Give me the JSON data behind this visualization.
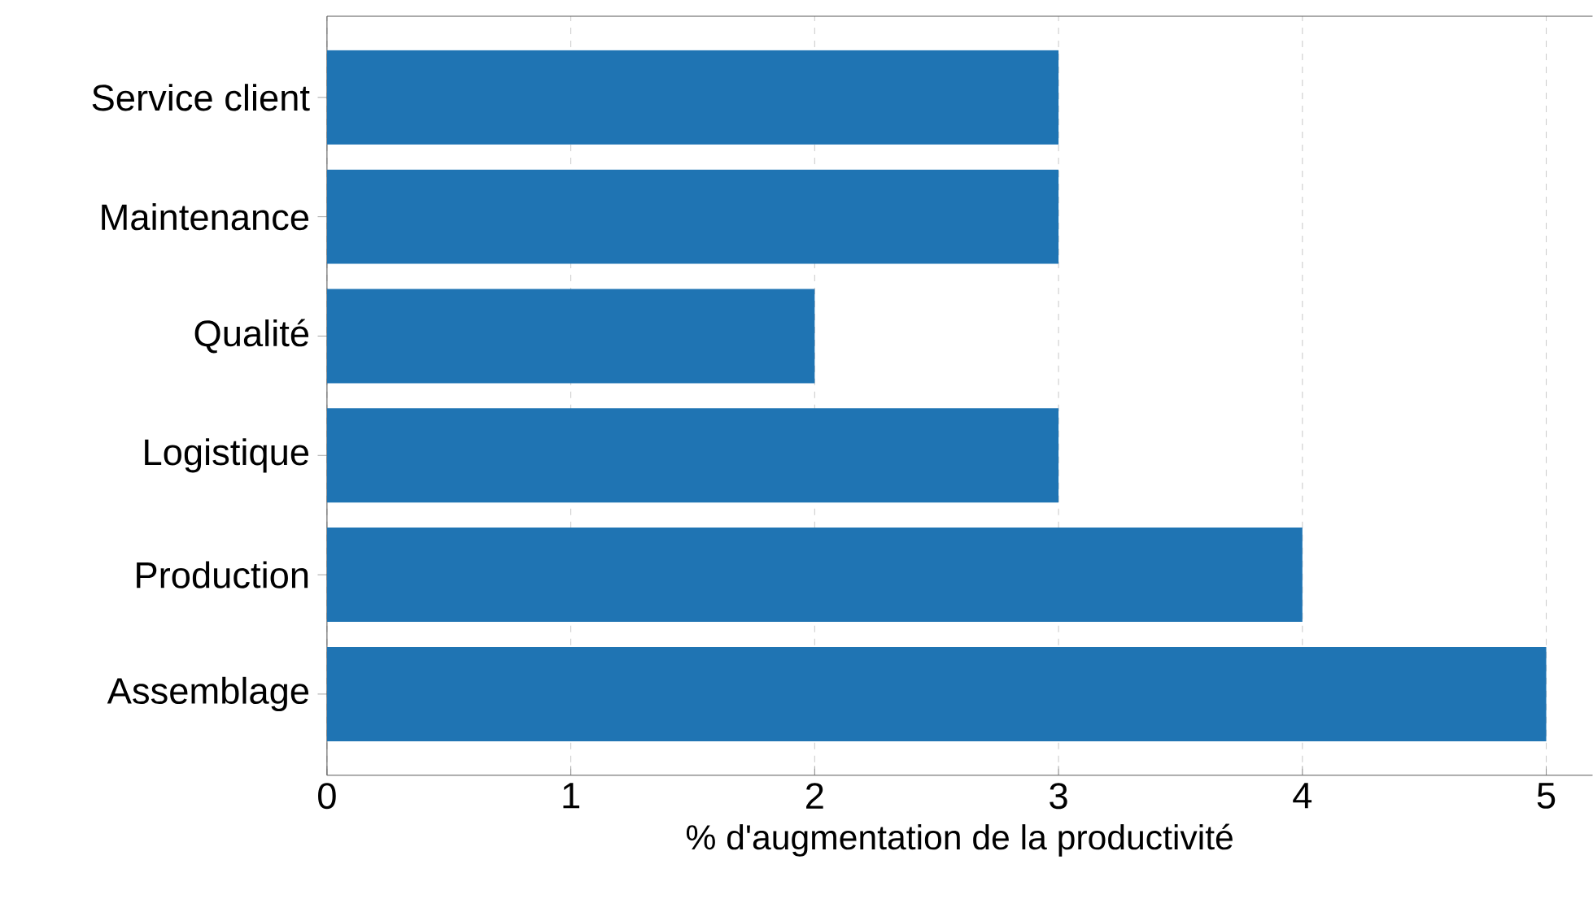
{
  "chart_data": {
    "type": "bar",
    "orientation": "horizontal",
    "xlabel": "% d'augmentation de la productivité",
    "categories": [
      "Service client",
      "Maintenance",
      "Qualité",
      "Logistique",
      "Production",
      "Assemblage"
    ],
    "values": [
      3,
      3,
      2,
      3,
      4,
      5
    ],
    "color": "#1f74b3",
    "xlim": [
      0,
      5.19
    ],
    "xticks": [
      0,
      1,
      2,
      3,
      4,
      5
    ],
    "grid": "x"
  }
}
